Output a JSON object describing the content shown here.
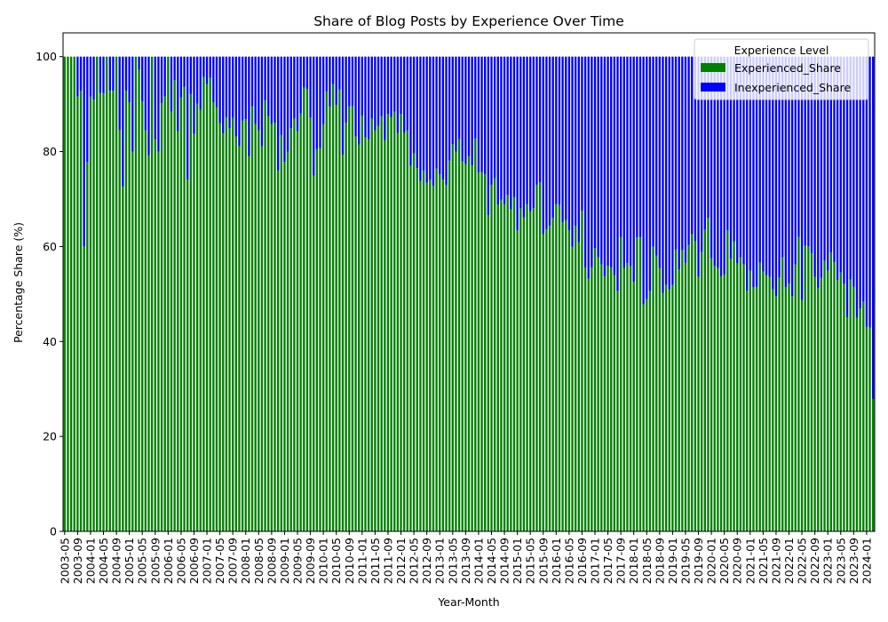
{
  "chart_data": {
    "type": "bar",
    "stacked": true,
    "title": "Share of Blog Posts by Experience Over Time",
    "xlabel": "Year-Month",
    "ylabel": "Percentage Share (%)",
    "ylim": [
      0,
      105
    ],
    "yticks": [
      "0",
      "20",
      "40",
      "60",
      "80",
      "100"
    ],
    "x_first_category": "2003-05",
    "x_frequency": "monthly",
    "xtick_labels": [
      "2003-05",
      "2003-09",
      "2004-01",
      "2004-05",
      "2004-09",
      "2005-01",
      "2005-05",
      "2005-09",
      "2006-01",
      "2006-05",
      "2006-09",
      "2007-01",
      "2007-05",
      "2007-09",
      "2008-01",
      "2008-05",
      "2008-09",
      "2009-01",
      "2009-05",
      "2009-09",
      "2010-01",
      "2010-05",
      "2010-09",
      "2011-01",
      "2011-05",
      "2011-09",
      "2012-01",
      "2012-05",
      "2012-09",
      "2013-01",
      "2013-05",
      "2013-09",
      "2014-01",
      "2014-05",
      "2014-09",
      "2015-01",
      "2015-05",
      "2015-09",
      "2016-01",
      "2016-05",
      "2016-09",
      "2017-01",
      "2017-05",
      "2017-09",
      "2018-01",
      "2018-05",
      "2018-09",
      "2019-01",
      "2019-05",
      "2019-09",
      "2020-01",
      "2020-05",
      "2020-09",
      "2021-01",
      "2021-05",
      "2021-09",
      "2022-01",
      "2022-05",
      "2022-09",
      "2023-01",
      "2023-05",
      "2023-09",
      "2024-01"
    ],
    "grid": false,
    "legend": {
      "title": "Experience Level",
      "placement": "top-right"
    },
    "series": [
      {
        "name": "Experienced_Share",
        "color": "#008000",
        "values": [
          100,
          100,
          100,
          100,
          91.6,
          92.8,
          60,
          77.8,
          91.6,
          90.9,
          100,
          92.3,
          92.3,
          100,
          92.8,
          92.8,
          100,
          84.6,
          72.6,
          92.8,
          90.4,
          80,
          100,
          97.2,
          90.6,
          84.5,
          79.2,
          100,
          82.6,
          80,
          90.2,
          91.6,
          100,
          88.4,
          95,
          84.3,
          91.4,
          93.6,
          74.1,
          92.1,
          83.7,
          90.1,
          88.8,
          95.7,
          94.2,
          95.5,
          90.4,
          89.3,
          86,
          83.8,
          87.2,
          84.9,
          87.1,
          83.2,
          81.1,
          86.5,
          86.8,
          79,
          89.5,
          85.8,
          84.5,
          81.1,
          90.8,
          87.5,
          85.8,
          86.1,
          76,
          83.5,
          77.8,
          80,
          84.9,
          86.9,
          84.3,
          88,
          93.5,
          93.2,
          87.1,
          74.9,
          80.5,
          80.7,
          85.8,
          92.6,
          89.4,
          94.2,
          89.8,
          93.1,
          79.3,
          86.1,
          89.5,
          89.5,
          83.2,
          81.5,
          87.6,
          83,
          82.6,
          86.9,
          84.5,
          85.4,
          87.5,
          82.4,
          87.9,
          87.2,
          88.4,
          83.9,
          87.9,
          83.9,
          84.5,
          77,
          79.6,
          76.5,
          73.8,
          76,
          73.4,
          74,
          72.8,
          76.4,
          75.2,
          74.1,
          73,
          78.1,
          81.6,
          80,
          82.6,
          77.9,
          77.4,
          79,
          77.1,
          82.7,
          75.6,
          75.6,
          75.2,
          66.6,
          73,
          74.4,
          68.8,
          69.9,
          68.9,
          70.8,
          67.8,
          70.4,
          63.4,
          68,
          66.1,
          68.9,
          67.4,
          68.1,
          73,
          73.5,
          62.6,
          63.6,
          64.4,
          66,
          68.9,
          68.8,
          65.1,
          65.6,
          63.4,
          59.9,
          64.4,
          60.9,
          67.5,
          55.6,
          53.2,
          55.6,
          59.7,
          57.7,
          56.2,
          53.7,
          55.9,
          55.6,
          54,
          50.6,
          62,
          55.5,
          56.5,
          55.9,
          52.6,
          61.9,
          61.9,
          47.8,
          48.9,
          50.6,
          60,
          58.1,
          55.5,
          50.2,
          51.9,
          51,
          51.9,
          59.4,
          55.2,
          59.2,
          56.6,
          60.3,
          62.6,
          61.2,
          53.6,
          58.9,
          63.5,
          66,
          57.5,
          55.9,
          55.5,
          53.7,
          54.1,
          63.4,
          57.4,
          61.1,
          56.4,
          57.7,
          56.2,
          50.7,
          54.9,
          51.4,
          51.5,
          56.6,
          54.7,
          54,
          53.6,
          51,
          49.6,
          53.4,
          57.7,
          51.4,
          52.2,
          49.6,
          56.2,
          62,
          48.7,
          60.2,
          60,
          58.6,
          53.6,
          51.3,
          53.4,
          57,
          54.9,
          58.7,
          56.7,
          52.9,
          54.5,
          52.1,
          45.1,
          53,
          51.5,
          45,
          46.9,
          48.4,
          43.1,
          42.9,
          27.9
        ]
      },
      {
        "name": "Inexperienced_Share",
        "color": "#0000ff",
        "values": [
          0,
          0,
          0,
          0,
          8.4,
          7.2,
          40,
          22.2,
          8.4,
          9.1,
          0,
          7.7,
          7.7,
          0,
          7.2,
          7.2,
          0,
          15.4,
          27.4,
          7.2,
          9.6,
          20,
          0,
          2.8,
          9.4,
          15.5,
          20.8,
          0,
          17.4,
          20,
          9.8,
          8.4,
          0,
          11.6,
          5,
          15.7,
          8.6,
          6.4,
          25.9,
          7.9,
          16.3,
          9.9,
          11.2,
          4.3,
          5.8,
          4.5,
          9.6,
          10.7,
          14,
          16.2,
          12.8,
          15.1,
          12.9,
          16.8,
          18.9,
          13.5,
          13.2,
          21,
          10.5,
          14.2,
          15.5,
          18.9,
          9.2,
          12.5,
          14.2,
          13.9,
          24,
          16.5,
          22.2,
          20,
          15.1,
          13.1,
          15.7,
          12,
          6.5,
          6.8,
          12.9,
          25.1,
          19.5,
          19.3,
          14.2,
          7.4,
          10.6,
          5.8,
          10.2,
          6.9,
          20.7,
          13.9,
          10.5,
          10.5,
          16.8,
          18.5,
          12.4,
          17,
          17.4,
          13.1,
          15.5,
          14.6,
          12.5,
          17.6,
          12.1,
          12.8,
          11.6,
          16.1,
          12.1,
          16.1,
          15.5,
          23,
          20.4,
          23.5,
          26.2,
          24,
          26.6,
          26,
          27.2,
          23.6,
          24.8,
          25.9,
          27,
          21.9,
          18.4,
          20,
          17.4,
          22.1,
          22.6,
          21,
          22.9,
          17.3,
          24.4,
          24.4,
          24.8,
          33.4,
          27,
          25.6,
          31.2,
          30.1,
          31.1,
          29.2,
          32.2,
          29.6,
          36.6,
          32,
          33.9,
          31.1,
          32.6,
          31.9,
          27,
          26.5,
          37.4,
          36.4,
          35.6,
          34,
          31.1,
          31.2,
          34.9,
          34.4,
          36.6,
          40.1,
          35.6,
          39.1,
          32.5,
          44.4,
          46.8,
          44.4,
          40.3,
          42.3,
          43.8,
          46.3,
          44.1,
          44.4,
          46,
          49.4,
          38,
          44.5,
          43.5,
          44.1,
          47.4,
          38.1,
          38.1,
          52.2,
          51.1,
          49.4,
          40,
          41.9,
          44.5,
          49.8,
          48.1,
          49,
          48.1,
          40.6,
          44.8,
          40.8,
          43.4,
          39.7,
          37.4,
          38.8,
          46.4,
          41.1,
          36.5,
          34,
          42.5,
          44.1,
          44.5,
          46.3,
          45.9,
          36.6,
          42.6,
          38.9,
          43.6,
          42.3,
          43.8,
          49.3,
          45.1,
          48.6,
          48.5,
          43.4,
          45.3,
          46,
          46.4,
          49,
          50.4,
          46.6,
          42.3,
          48.6,
          47.8,
          50.4,
          43.8,
          38,
          51.3,
          39.8,
          40,
          41.4,
          46.4,
          48.7,
          46.6,
          43,
          45.1,
          41.3,
          43.3,
          47.1,
          45.5,
          47.9,
          54.9,
          47,
          48.5,
          55,
          53.1,
          51.6,
          56.9,
          57.1,
          72.1
        ]
      }
    ]
  }
}
